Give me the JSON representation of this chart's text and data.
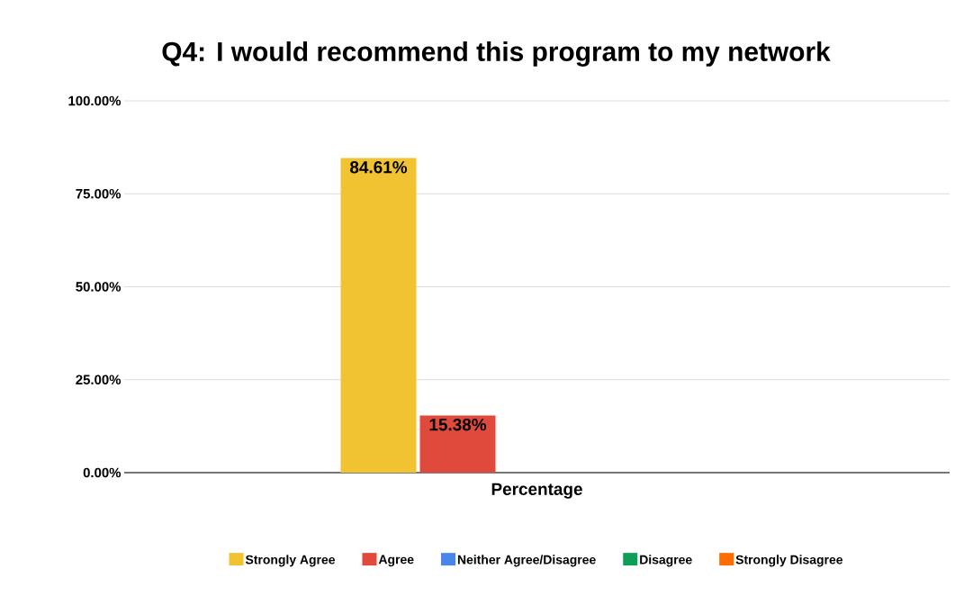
{
  "chart_data": {
    "type": "bar",
    "title": "Q4: I would recommend this program to my network",
    "categories": [
      "Percentage"
    ],
    "series": [
      {
        "name": "Strongly Agree",
        "color": "#f1c232",
        "values": [
          84.61
        ],
        "value_labels": [
          "84.61%"
        ]
      },
      {
        "name": "Agree",
        "color": "#e04a3c",
        "values": [
          15.38
        ],
        "value_labels": [
          "15.38%"
        ]
      },
      {
        "name": "Neither Agree/Disagree",
        "color": "#4a86e8",
        "values": [
          0
        ],
        "value_labels": [
          null
        ]
      },
      {
        "name": "Disagree",
        "color": "#0f9d58",
        "values": [
          0
        ],
        "value_labels": [
          null
        ]
      },
      {
        "name": "Strongly Disagree",
        "color": "#ff6d01",
        "values": [
          0
        ],
        "value_labels": [
          null
        ]
      }
    ],
    "ylim": [
      0,
      100
    ],
    "yticks": [
      {
        "value": 0,
        "label": "0.00%"
      },
      {
        "value": 25,
        "label": "25.00%"
      },
      {
        "value": 50,
        "label": "50.00%"
      },
      {
        "value": 75,
        "label": "75.00%"
      },
      {
        "value": 100,
        "label": "100.00%"
      }
    ],
    "grid": "y",
    "legend": "bottom"
  }
}
